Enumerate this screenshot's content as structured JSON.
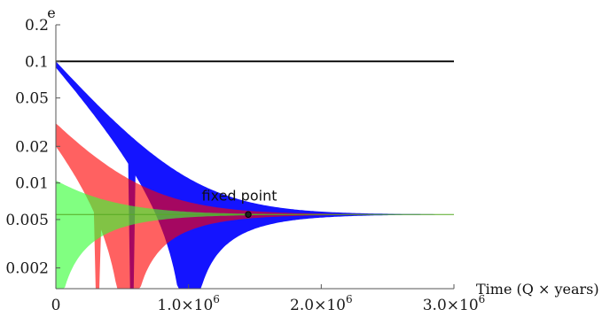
{
  "chart_data": {
    "type": "line",
    "ylabel": "e",
    "xlabel": "Time (Q × years)",
    "y_scale": "log",
    "ylim": [
      0.00135,
      0.2
    ],
    "xlim": [
      0,
      3000000
    ],
    "yticks": [
      {
        "value": 0.2,
        "label": "0.2"
      },
      {
        "value": 0.1,
        "label": "0.1"
      },
      {
        "value": 0.05,
        "label": "0.05"
      },
      {
        "value": 0.02,
        "label": "0.02"
      },
      {
        "value": 0.01,
        "label": "0.01"
      },
      {
        "value": 0.005,
        "label": "0.005"
      },
      {
        "value": 0.002,
        "label": "0.002"
      }
    ],
    "xticks": [
      {
        "value": 0,
        "label": "0",
        "exp": ""
      },
      {
        "value": 1000000,
        "label": "1.0×10",
        "exp": "6"
      },
      {
        "value": 2000000,
        "label": "2.0×10",
        "exp": "6"
      },
      {
        "value": 3000000,
        "label": "3.0×10",
        "exp": "6"
      }
    ],
    "grid": false,
    "series": [
      {
        "color": "#0000ff",
        "e_initial": 0.1,
        "e_fixed": 0.0055,
        "envelope_decay_time": 350000,
        "min_crossing_time": 570000
      },
      {
        "color": "#ff0000",
        "e_initial": 0.031,
        "e_fixed": 0.0055,
        "envelope_decay_time": 350000,
        "min_crossing_time": 310000
      },
      {
        "color": "#33ff33",
        "e_initial": 0.0105,
        "e_fixed": 0.0055,
        "envelope_decay_time": 350000,
        "min_crossing_time": 0
      },
      {
        "color": "#000000",
        "constant_e": 0.1
      }
    ],
    "annotations": [
      {
        "text": "fixed point",
        "x": 1450000,
        "y": 0.0055
      }
    ]
  }
}
